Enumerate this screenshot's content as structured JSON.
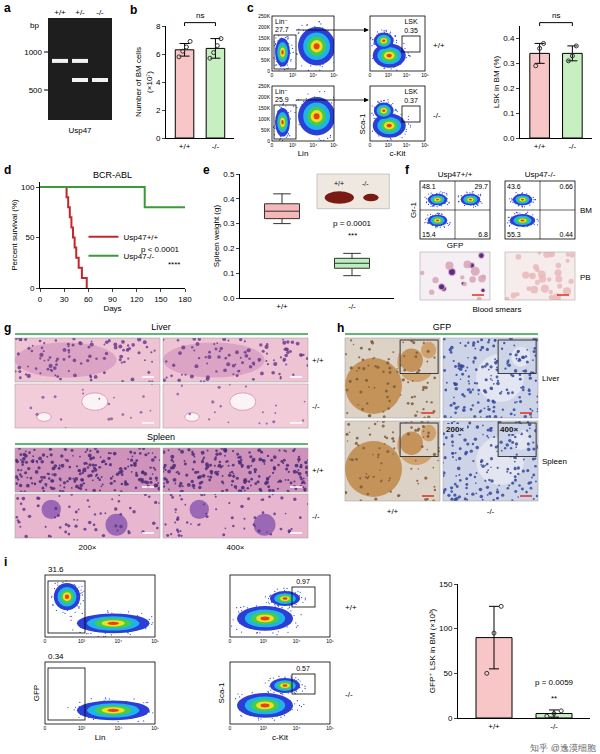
{
  "chart_data": [
    {
      "label": "b",
      "type": "bar",
      "y_title": "Number of BM cells\n(×10⁷)",
      "categories": [
        "+/+",
        "-/-"
      ],
      "values": [
        6.3,
        6.4
      ],
      "errors": [
        0.45,
        0.7
      ],
      "points": [
        [
          5.8,
          6.2,
          6.5,
          6.9
        ],
        [
          5.7,
          6.1,
          6.6,
          7.1
        ]
      ],
      "colors": [
        "#f8c6c6",
        "#c8efc2"
      ],
      "ylim": [
        0,
        8
      ],
      "yticks": [
        0,
        2,
        4,
        6,
        8
      ],
      "annotations": [
        "ns"
      ]
    },
    {
      "type": "bar",
      "y_title": "LSK in BM (%)",
      "categories": [
        "+/+",
        "-/-"
      ],
      "values": [
        0.34,
        0.34
      ],
      "errors": [
        0.04,
        0.03
      ],
      "points": [
        [
          0.29,
          0.36,
          0.38
        ],
        [
          0.31,
          0.33,
          0.37
        ]
      ],
      "colors": [
        "#f8c6c6",
        "#c8efc2"
      ],
      "ylim": [
        0,
        0.45
      ],
      "yticks": [
        {
          "value": 0,
          "label": "0.0"
        },
        0.1,
        0.2,
        0.3,
        0.4
      ],
      "annotations": [
        "ns"
      ]
    },
    {
      "label": "d",
      "type": "line",
      "title": "BCR-ABL",
      "x_title": "Days",
      "y_title": "Percent survival (%)",
      "xlim": [
        0,
        180
      ],
      "xticks": [
        0,
        30,
        60,
        90,
        120,
        150,
        180
      ],
      "ylim": [
        0,
        105
      ],
      "yticks": [
        0,
        50,
        100
      ],
      "line_style": "step",
      "legend": "center",
      "series": [
        {
          "name": "Usp47+/+",
          "color": "#c0282d",
          "x": [
            0,
            33,
            35,
            37,
            39,
            41,
            43,
            45,
            48,
            52,
            58
          ],
          "values": [
            100,
            90,
            80,
            70,
            60,
            50,
            40,
            30,
            20,
            10,
            0
          ]
        },
        {
          "name": "Usp47-/-",
          "color": "#3a9a3a",
          "x": [
            0,
            130,
            180
          ],
          "values": [
            100,
            80,
            80
          ]
        }
      ],
      "annotations": [
        "p < 0.0001",
        "****"
      ]
    },
    {
      "label": "e",
      "type": "box",
      "y_title": "Spleen weight (g)",
      "categories": [
        "+/+",
        "-/-"
      ],
      "q1": [
        0.32,
        0.12
      ],
      "median": [
        0.35,
        0.14
      ],
      "q3": [
        0.38,
        0.16
      ],
      "min": [
        0.3,
        0.09
      ],
      "max": [
        0.42,
        0.18
      ],
      "colors": [
        "#f5b7b7",
        "#bdeebd"
      ],
      "ylim": [
        0,
        0.5
      ],
      "yticks": [
        {
          "value": 0,
          "label": "0.0"
        },
        0.1,
        0.2,
        0.3,
        0.4,
        0.5
      ],
      "annotations": [
        "p = 0.0001",
        "***"
      ],
      "inset_labels": [
        "+/+",
        "-/-"
      ]
    },
    {
      "type": "bar",
      "y_title": "GFP⁺ LSK in BM (×10³)",
      "categories": [
        "+/+",
        "-/-"
      ],
      "values": [
        90,
        5
      ],
      "errors": [
        35,
        4
      ],
      "points": [
        [
          50,
          95,
          125
        ],
        [
          2,
          5,
          8
        ]
      ],
      "colors": [
        "#f8c6c6",
        "#c8efc2"
      ],
      "ylim": [
        0,
        150
      ],
      "yticks": [
        0,
        50,
        100,
        150
      ],
      "annotations": [
        "p = 0.0059",
        "**"
      ]
    }
  ],
  "panels": {
    "a": {
      "label": "a",
      "lanes": [
        "+/+",
        "+/-",
        "-/-"
      ],
      "unit": "bp",
      "ladder": [
        1000,
        500
      ],
      "bands": [
        [
          850
        ],
        [
          850,
          600
        ],
        [
          600
        ]
      ],
      "gene": "Usp47"
    },
    "c_flow": {
      "label": "c",
      "rows": [
        {
          "genotype": "+/+",
          "lin_neg": 27.7,
          "lsk": 0.35
        },
        {
          "genotype": "-/-",
          "lin_neg": 25.9,
          "lsk": 0.37
        }
      ],
      "gate_labels": [
        "Lin⁻",
        "LSK"
      ],
      "x_labels": [
        "Lin",
        "c-Kit"
      ],
      "y_label": "Sca-1",
      "fsc_ticks": [
        "0",
        "50K",
        "100K",
        "150K",
        "200K",
        "250K"
      ],
      "log_ticks": [
        "0",
        "10³",
        "10⁴",
        "10⁵"
      ]
    },
    "f": {
      "label": "f",
      "columns": [
        "Usp47+/+",
        "Usp47-/-"
      ],
      "quadrants": [
        [
          48.1,
          29.7,
          15.4,
          6.8
        ],
        [
          43.6,
          0.66,
          55.3,
          0.44
        ]
      ],
      "y_label": "Gr-1",
      "x_label": "GFP",
      "row_labels": [
        "BM",
        "PB"
      ],
      "caption": "Blood smears"
    },
    "g": {
      "label": "g",
      "tissues": [
        "Liver",
        "Spleen"
      ],
      "genotypes": [
        "+/+",
        "-/-"
      ],
      "magnifications": [
        "200×",
        "400×"
      ]
    },
    "h": {
      "label": "h",
      "title": "GFP",
      "tissues": [
        "Liver",
        "Spleen"
      ],
      "genotypes": [
        "+/+",
        "-/-"
      ],
      "magnifications": [
        "200×",
        "400×"
      ]
    },
    "i_flow": {
      "label": "i",
      "rows": [
        {
          "genotype": "+/+",
          "gfp_pos": 31.6,
          "lsk": 0.97
        },
        {
          "genotype": "-/-",
          "gfp_pos": 0.34,
          "lsk": 0.57
        }
      ],
      "x_labels": [
        "Lin",
        "c-Kit"
      ],
      "y_labels": [
        "GFP",
        "Sca-1"
      ],
      "log_ticks": [
        "0",
        "10³",
        "10⁴",
        "10⁵"
      ]
    }
  },
  "watermark": "知乎 @逸漠细胞"
}
